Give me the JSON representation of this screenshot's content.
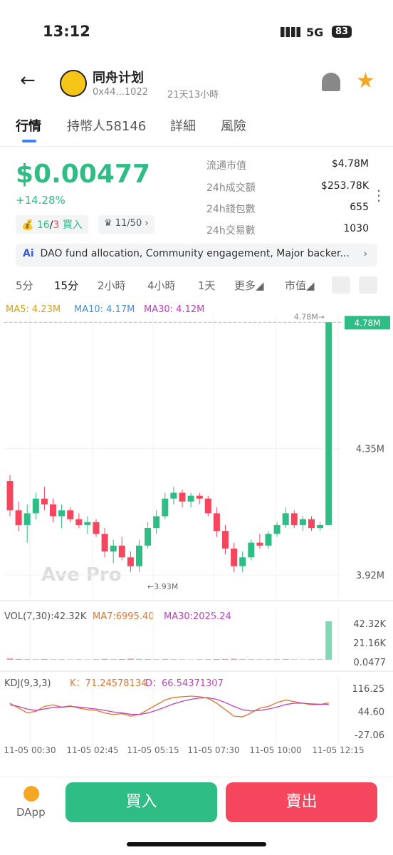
{
  "status_bar": {
    "time": "13:12",
    "network": "5G",
    "battery": "83"
  },
  "token": {
    "name": "同舟计划",
    "address": "0x44...1022",
    "age": "21天13小時"
  },
  "tabs": [
    "行情",
    "持幣人58146",
    "詳細",
    "風險"
  ],
  "price": "$0.00477",
  "change": "+14.28%",
  "trade_counts": {
    "buys": "16",
    "separator": "/",
    "sells": "3",
    "action": "買入"
  },
  "holders_ratio": "11/50",
  "stats": [
    {
      "label": "流通市值",
      "value": "$4.78M"
    },
    {
      "label": "24h成交額",
      "value": "$253.78K"
    },
    {
      "label": "24h錢包數",
      "value": "655"
    },
    {
      "label": "24h交易數",
      "value": "1030"
    }
  ],
  "ai_summary": "DAO fund allocation, Community engagement, Major backer...",
  "intervals": [
    "5分",
    "15分",
    "2小時",
    "4小時",
    "1天",
    "更多",
    "市值"
  ],
  "ma_labels": [
    "MA5: 4.23M",
    "MA10: 4.17M",
    "MA30: 4.12M"
  ],
  "chart": {
    "type": "candlestick",
    "watermark": "Ave Pro",
    "open": [
      4.24,
      4.14,
      4.09,
      4.13,
      4.18,
      4.16,
      4.12,
      4.14,
      4.11,
      4.09,
      4.1,
      4.06,
      4.0,
      4.02,
      3.98,
      3.95,
      4.02,
      4.08,
      4.12,
      4.18,
      4.2,
      4.17,
      4.19,
      4.18,
      4.13,
      4.07,
      4.01,
      3.95,
      3.98,
      4.03,
      4.02,
      4.06,
      4.09,
      4.13,
      4.09,
      4.11,
      4.08,
      4.09
    ],
    "high": [
      4.26,
      4.17,
      4.16,
      4.2,
      4.22,
      4.18,
      4.16,
      4.15,
      4.13,
      4.12,
      4.11,
      4.08,
      4.04,
      4.05,
      4.0,
      4.04,
      4.1,
      4.14,
      4.2,
      4.22,
      4.21,
      4.2,
      4.2,
      4.19,
      4.15,
      4.09,
      4.03,
      4.0,
      4.04,
      4.06,
      4.07,
      4.1,
      4.15,
      4.14,
      4.12,
      4.12,
      4.1,
      4.78
    ],
    "low": [
      4.12,
      4.07,
      4.03,
      4.11,
      4.14,
      4.1,
      4.08,
      4.1,
      4.08,
      4.06,
      4.05,
      3.98,
      3.96,
      3.97,
      3.93,
      3.93,
      4.01,
      4.06,
      4.11,
      4.16,
      4.15,
      4.15,
      4.16,
      4.12,
      4.05,
      3.99,
      3.93,
      3.93,
      3.97,
      4.01,
      4.01,
      4.05,
      4.08,
      4.08,
      4.07,
      4.07,
      4.07,
      4.09
    ],
    "close": [
      4.14,
      4.09,
      4.13,
      4.18,
      4.16,
      4.12,
      4.14,
      4.11,
      4.09,
      4.1,
      4.06,
      4.0,
      4.02,
      3.98,
      3.95,
      4.02,
      4.08,
      4.12,
      4.18,
      4.2,
      4.17,
      4.19,
      4.18,
      4.13,
      4.07,
      4.01,
      3.95,
      3.98,
      4.03,
      4.02,
      4.06,
      4.09,
      4.13,
      4.09,
      4.11,
      4.08,
      4.09,
      4.78
    ],
    "ylim": [
      3.84,
      4.81
    ],
    "yticks": [
      {
        "value": 4.78,
        "label": "4.78M"
      },
      {
        "value": 4.35,
        "label": "4.35M"
      },
      {
        "value": 3.92,
        "label": "3.92M"
      }
    ],
    "current": {
      "value": 4.78,
      "label": "4.78M"
    },
    "high_note": {
      "value": 4.78,
      "label": "4.78M→"
    },
    "low_note": {
      "value": 3.93,
      "label": "←3.93M"
    },
    "x_labels": [
      "11-05 00:30",
      "11-05 02:45",
      "11-05 05:15",
      "11-05 07:30",
      "11-05 10:00",
      "11-05 12:15"
    ]
  },
  "volume": {
    "label": "VOL(7,30):42.32K",
    "ma7": "MA7:6995.40",
    "ma30": "MA30:2025.24",
    "values": [
      1500,
      900,
      700,
      600,
      800,
      500,
      600,
      400,
      500,
      400,
      600,
      900,
      700,
      800,
      1200,
      1000,
      800,
      600,
      900,
      700,
      500,
      400,
      500,
      600,
      800,
      900,
      1100,
      800,
      700,
      500,
      600,
      700,
      900,
      500,
      400,
      500,
      600,
      42320
    ],
    "ylim": [
      0,
      45000
    ],
    "yticks": [
      {
        "value": 42320,
        "label": "42.32K"
      },
      {
        "value": 21160,
        "label": "21.16K"
      },
      0.0477
    ]
  },
  "kdj": {
    "label": "KDJ(9,3,3)",
    "k_label": "K：71.24578134",
    "d_label": "D：66.54371307",
    "k": [
      70,
      55,
      40,
      45,
      60,
      65,
      58,
      62,
      55,
      50,
      48,
      40,
      35,
      38,
      30,
      35,
      50,
      65,
      80,
      88,
      90,
      92,
      90,
      85,
      70,
      50,
      30,
      28,
      40,
      55,
      60,
      72,
      80,
      75,
      70,
      65,
      66,
      71.24578134
    ],
    "d": [
      65,
      60,
      52,
      48,
      52,
      57,
      58,
      60,
      58,
      55,
      52,
      48,
      43,
      40,
      36,
      35,
      40,
      48,
      58,
      68,
      76,
      82,
      86,
      87,
      82,
      72,
      60,
      50,
      46,
      48,
      52,
      58,
      66,
      70,
      70,
      68,
      67,
      66.54371307
    ],
    "ylim": [
      -42.5,
      129.5
    ],
    "yticks": [
      116.25,
      {
        "value": 44.6,
        "label": "44.60"
      },
      -27.06
    ]
  },
  "bottom": {
    "dapp": "DApp",
    "buy": "買入",
    "sell": "賣出"
  }
}
